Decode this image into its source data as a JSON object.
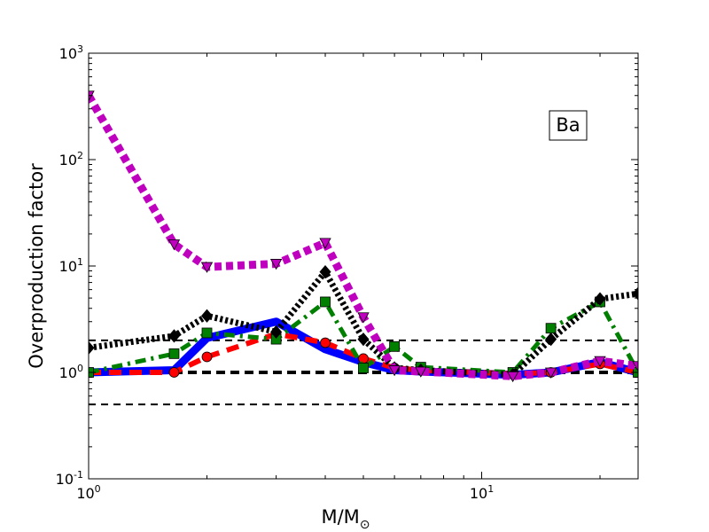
{
  "chart_data": {
    "type": "line",
    "title": "",
    "annotation": "Ba",
    "xlabel": {
      "text": "M/M",
      "subscript": "⊙"
    },
    "ylabel": "Overproduction factor",
    "xscale": "log",
    "yscale": "log",
    "xlim": [
      1,
      25
    ],
    "ylim": [
      0.1,
      1000
    ],
    "x_ticks": [
      {
        "value": 1,
        "base": "10",
        "exp": "0"
      },
      {
        "value": 10,
        "base": "10",
        "exp": "1"
      }
    ],
    "y_ticks": [
      {
        "value": 0.1,
        "base": "10",
        "exp": "-1"
      },
      {
        "value": 1,
        "base": "10",
        "exp": "0"
      },
      {
        "value": 10,
        "base": "10",
        "exp": "1"
      },
      {
        "value": 100,
        "base": "10",
        "exp": "2"
      },
      {
        "value": 1000,
        "base": "10",
        "exp": "3"
      }
    ],
    "reference_lines": [
      {
        "y": 2.0,
        "color": "#000000",
        "style": "dashed",
        "weight": "thin"
      },
      {
        "y": 1.0,
        "color": "#000000",
        "style": "dashed",
        "weight": "thick"
      },
      {
        "y": 0.5,
        "color": "#000000",
        "style": "dashed",
        "weight": "thin"
      }
    ],
    "series": [
      {
        "color": "#0000ff",
        "style": "solid",
        "marker": "none",
        "points": [
          [
            1.0,
            1.0
          ],
          [
            1.65,
            1.05
          ],
          [
            2.0,
            2.1
          ],
          [
            3.0,
            3.0
          ],
          [
            4.0,
            1.65
          ],
          [
            5.0,
            1.25
          ],
          [
            6.0,
            1.05
          ],
          [
            7.0,
            1.02
          ],
          [
            12.0,
            0.95
          ],
          [
            15.0,
            1.0
          ],
          [
            20.0,
            1.25
          ],
          [
            25.0,
            1.0
          ]
        ]
      },
      {
        "color": "#ff0000",
        "style": "dashed",
        "marker": "circle",
        "points": [
          [
            1.0,
            1.0
          ],
          [
            1.65,
            1.0
          ],
          [
            2.0,
            1.4
          ],
          [
            3.0,
            2.3
          ],
          [
            4.0,
            1.9
          ],
          [
            5.0,
            1.35
          ],
          [
            6.0,
            1.1
          ],
          [
            7.0,
            1.05
          ],
          [
            12.0,
            0.97
          ],
          [
            15.0,
            1.0
          ],
          [
            20.0,
            1.2
          ],
          [
            25.0,
            1.0
          ]
        ]
      },
      {
        "color": "#007f00",
        "style": "dashdot",
        "marker": "square",
        "points": [
          [
            1.0,
            1.0
          ],
          [
            1.65,
            1.5
          ],
          [
            2.0,
            2.35
          ],
          [
            3.0,
            2.05
          ],
          [
            4.0,
            4.6
          ],
          [
            5.0,
            1.1
          ],
          [
            6.0,
            1.75
          ],
          [
            7.0,
            1.12
          ],
          [
            12.0,
            1.0
          ],
          [
            15.0,
            2.6
          ],
          [
            20.0,
            4.6
          ],
          [
            25.0,
            1.0
          ]
        ]
      },
      {
        "color": "#000000",
        "style": "dotted",
        "marker": "diamond",
        "points": [
          [
            1.0,
            1.7
          ],
          [
            1.65,
            2.2
          ],
          [
            2.0,
            3.4
          ],
          [
            3.0,
            2.4
          ],
          [
            4.0,
            8.8
          ],
          [
            5.0,
            2.05
          ],
          [
            6.0,
            1.1
          ],
          [
            7.0,
            1.05
          ],
          [
            12.0,
            0.95
          ],
          [
            15.0,
            2.05
          ],
          [
            20.0,
            4.9
          ],
          [
            25.0,
            5.5
          ]
        ]
      },
      {
        "color": "#bf00bf",
        "style": "dotted",
        "marker": "triangle-down",
        "points": [
          [
            1.0,
            400
          ],
          [
            1.65,
            16
          ],
          [
            2.0,
            9.8
          ],
          [
            3.0,
            10.5
          ],
          [
            4.0,
            16.5
          ],
          [
            5.0,
            3.3
          ],
          [
            6.0,
            1.05
          ],
          [
            7.0,
            1.02
          ],
          [
            12.0,
            0.92
          ],
          [
            15.0,
            1.0
          ],
          [
            20.0,
            1.28
          ],
          [
            25.0,
            1.15
          ]
        ]
      }
    ],
    "grid": false,
    "legend": "none"
  }
}
